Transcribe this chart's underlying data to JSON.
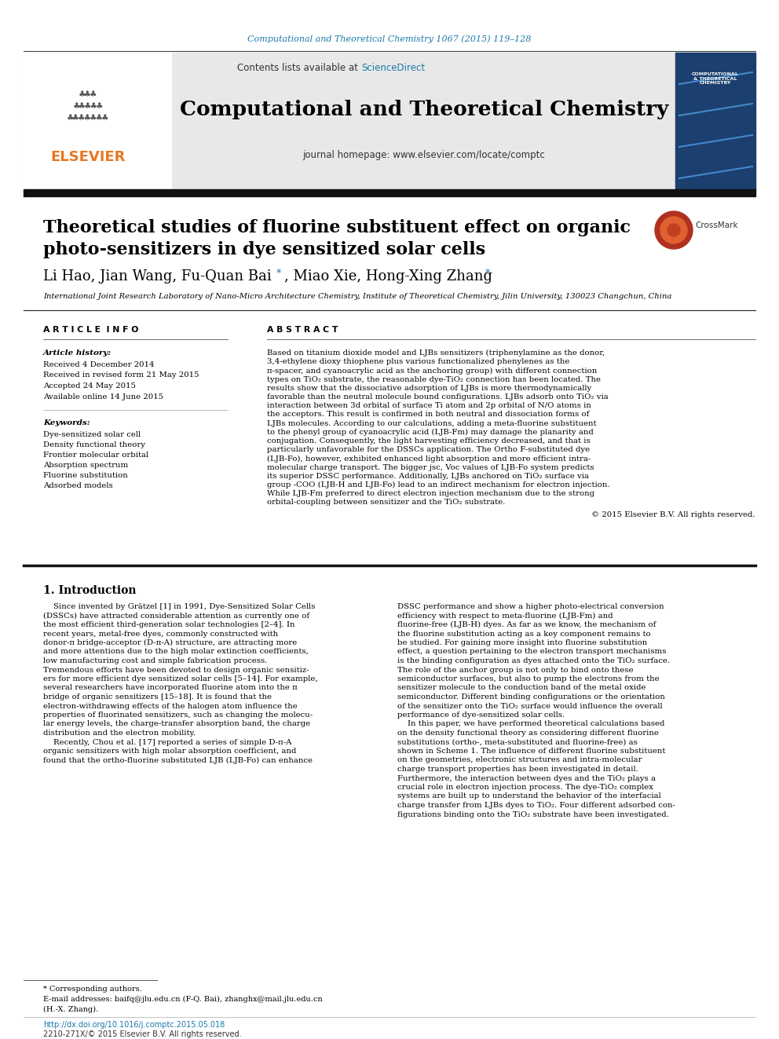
{
  "journal_ref": "Computational and Theoretical Chemistry 1067 (2015) 119–128",
  "journal_ref_color": "#1a7aaa",
  "journal_name": "Computational and Theoretical Chemistry",
  "contents_text": "Contents lists available at ",
  "sciencedirect": "ScienceDirect",
  "sciencedirect_color": "#1a7aaa",
  "homepage_text": "journal homepage: www.elsevier.com/locate/comptc",
  "elsevier_color": "#e87722",
  "header_bg": "#e8e8e8",
  "title_line1": "Theoretical studies of fluorine substituent effect on organic",
  "title_line2": "photo-sensitizers in dye sensitized solar cells",
  "authors_part1": "Li Hao, Jian Wang, Fu-Quan Bai",
  "authors_part2": ", Miao Xie, Hong-Xing Zhang",
  "star_color": "#1a7aaa",
  "affiliation": "International Joint Research Laboratory of Nano-Micro Architecture Chemistry, Institute of Theoretical Chemistry, Jilin University, 130023 Changchun, China",
  "section_article_info": "A R T I C L E  I N F O",
  "section_abstract": "A B S T R A C T",
  "article_history_label": "Article history:",
  "history_lines": [
    "Received 4 December 2014",
    "Received in revised form 21 May 2015",
    "Accepted 24 May 2015",
    "Available online 14 June 2015"
  ],
  "keywords_label": "Keywords:",
  "keywords": [
    "Dye-sensitized solar cell",
    "Density functional theory",
    "Frontier molecular orbital",
    "Absorption spectrum",
    "Fluorine substitution",
    "Adsorbed models"
  ],
  "abstract": "Based on titanium dioxide model and LJBs sensitizers (triphenylamine as the donor, 3,4-ethylene dioxy thiophene plus various functionalized phenylenes as the π-spacer, and cyanoacrylic acid as the anchoring group) with different connection types on TiO₂ substrate, the reasonable dye-TiO₂ connection has been located. The results show that the dissociative adsorption of LJBs is more thermodynamically favorable than the neutral molecule bound configurations. LJBs adsorb onto TiO₂ via interaction between 3d orbital of surface Ti atom and 2p orbital of N/O atoms in the acceptors. This result is confirmed in both neutral and dissociation forms of LJBs molecules. According to our calculations, adding a meta-fluorine substituent to the phenyl group of cyanoacrylic acid (LJB-Fm) may damage the planarity and conjugation. Consequently, the light harvesting efficiency decreased, and that is particularly unfavorable for the DSSCs application. The Ortho F-substituted dye (LJB-Fo), however, exhibited enhanced light absorption and more efficient intra-molecular charge transport. The bigger jsc, Voc values of LJB-Fo system predicts its superior DSSC performance. Additionally, LJBs anchored on TiO₂ surface via group -COO (LJB-H and LJB-Fo) lead to an indirect mechanism for electron injection. While LJB-Fm preferred to direct electron injection mechanism due to the strong orbital-coupling between sensitizer and the TiO₂ substrate.",
  "copyright": "© 2015 Elsevier B.V. All rights reserved.",
  "intro_heading": "1. Introduction",
  "intro_col1_lines": [
    "    Since invented by Grätzel [1] in 1991, Dye-Sensitized Solar Cells",
    "(DSSCs) have attracted considerable attention as currently one of",
    "the most efficient third-generation solar technologies [2–4]. In",
    "recent years, metal-free dyes, commonly constructed with",
    "donor-π bridge-acceptor (D-π-A) structure, are attracting more",
    "and more attentions due to the high molar extinction coefficients,",
    "low manufacturing cost and simple fabrication process.",
    "Tremendous efforts have been devoted to design organic sensitiz-",
    "ers for more efficient dye sensitized solar cells [5–14]. For example,",
    "several researchers have incorporated fluorine atom into the π",
    "bridge of organic sensitizers [15–18]. It is found that the",
    "electron-withdrawing effects of the halogen atom influence the",
    "properties of fluorinated sensitizers, such as changing the molecu-",
    "lar energy levels, the charge-transfer absorption band, the charge",
    "distribution and the electron mobility.",
    "    Recently, Chou et al. [17] reported a series of simple D-π-A",
    "organic sensitizers with high molar absorption coefficient, and",
    "found that the ortho-fluorine substituted LJB (LJB-Fo) can enhance"
  ],
  "intro_col2_lines": [
    "DSSC performance and show a higher photo-electrical conversion",
    "efficiency with respect to meta-fluorine (LJB-Fm) and",
    "fluorine-free (LJB-H) dyes. As far as we know, the mechanism of",
    "the fluorine substitution acting as a key component remains to",
    "be studied. For gaining more insight into fluorine substitution",
    "effect, a question pertaining to the electron transport mechanisms",
    "is the binding configuration as dyes attached onto the TiO₂ surface.",
    "The role of the anchor group is not only to bind onto these",
    "semiconductor surfaces, but also to pump the electrons from the",
    "sensitizer molecule to the conduction band of the metal oxide",
    "semiconductor. Different binding configurations or the orientation",
    "of the sensitizer onto the TiO₂ surface would influence the overall",
    "performance of dye-sensitized solar cells.",
    "    In this paper, we have performed theoretical calculations based",
    "on the density functional theory as considering different fluorine",
    "substitutions (ortho-, meta-substituted and fluorine-free) as",
    "shown in Scheme 1. The influence of different fluorine substituent",
    "on the geometries, electronic structures and intra-molecular",
    "charge transport properties has been investigated in detail.",
    "Furthermore, the interaction between dyes and the TiO₂ plays a",
    "crucial role in electron injection process. The dye-TiO₂ complex",
    "systems are built up to understand the behavior of the interfacial",
    "charge transfer from LJBs dyes to TiO₂. Four different adsorbed con-",
    "figurations binding onto the TiO₂ substrate have been investigated."
  ],
  "footnote_star": "* Corresponding authors.",
  "footnote_email": "E-mail addresses: baifq@jlu.edu.cn (F-Q. Bai), zhanghx@mail.jlu.edu.cn",
  "footnote_email2": "(H.-X. Zhang).",
  "footer_doi": "http://dx.doi.org/10.1016/j.comptc.2015.05.018",
  "footer_issn": "2210-271X/© 2015 Elsevier B.V. All rights reserved.",
  "footer_color": "#1a7aaa",
  "background_color": "#ffffff"
}
